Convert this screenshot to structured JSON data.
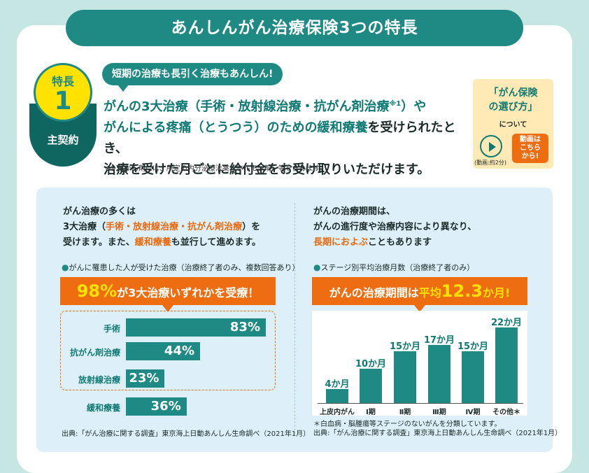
{
  "header": {
    "title": "あんしんがん治療保険3つの特長"
  },
  "feature": {
    "badge_label": "特長",
    "badge_number": "1",
    "badge_sub": "主契約",
    "bubble": "短期の治療も長引く治療もあんしん!",
    "line1_a": "がんの3大治療（手術・放射線治療・抗がん剤治療",
    "line1_sup": "※1",
    "line1_b": "）や",
    "line2_hl1": "がんによる疼痛（とうつう）のための緩和療養",
    "line2_b": "を受けられたとき、",
    "line3": "治療を受けた月ごとに給付金をお受け取りいただけます。",
    "footnote": "※1 抗がん剤には、所定の内分泌療法薬（ホルモン剤）等を含みます。"
  },
  "howto": {
    "title1": "「がん保険",
    "title2": "の選び方」",
    "about": "について",
    "duration": "(動画:約2分)",
    "video_btn1": "動画は",
    "video_btn2": "こちら",
    "video_btn3": "から!"
  },
  "left": {
    "intro1": "がん治療の多くは",
    "intro2a": "3大治療（",
    "intro2b": "手術・放射線治療・抗がん剤治療",
    "intro2c": "）を",
    "intro3a": "受けます。また、",
    "intro3b": "緩和療養",
    "intro3c": "も並行して進めます。",
    "caption": "がんに罹患した人が受けた治療（治療終了者のみ、複数回答あり）",
    "banner_big": "98%",
    "banner_rest": "が3大治療いずれかを受療！",
    "source": "出典:「がん治療に関する調査」東京海上日動あんしん生命調べ（2021年1月）"
  },
  "right": {
    "intro1": "がんの治療期間は、",
    "intro2": "がんの進行度や治療内容により異なり、",
    "intro3a": "長期におよぶ",
    "intro3b": "こともあります",
    "caption": "ステージ別平均治療月数（治療終了者のみ）",
    "banner_a": "がんの治療期間は",
    "banner_b": "平均",
    "banner_big": "12.3",
    "banner_c": "か月!",
    "note": "＊白血病・脳腫瘍等ステージのないがんを分類しています。",
    "source": "出典:「がん治療に関する調査」東京海上日動あんしん生命調べ（2021年1月）"
  },
  "chart_data": [
    {
      "type": "bar",
      "orientation": "horizontal",
      "categories": [
        "手術",
        "抗がん剤治療",
        "放射線治療",
        "緩和療養"
      ],
      "values": [
        83,
        44,
        23,
        36
      ],
      "labels": [
        "83%",
        "44%",
        "23%",
        "36%"
      ],
      "unit": "%",
      "xlim": [
        0,
        100
      ]
    },
    {
      "type": "bar",
      "orientation": "vertical",
      "categories": [
        "上皮内がん",
        "Ⅰ期",
        "Ⅱ期",
        "Ⅲ期",
        "Ⅳ期",
        "その他＊"
      ],
      "values": [
        4,
        10,
        15,
        17,
        15,
        22
      ],
      "labels": [
        "4か月",
        "10か月",
        "15か月",
        "17か月",
        "15か月",
        "22か月"
      ],
      "unit": "か月",
      "ylim": [
        0,
        22
      ]
    }
  ],
  "colors": {
    "teal": "#1f8a84",
    "dark_teal": "#0f6660",
    "orange": "#ef6d11",
    "yellow": "#ffe200",
    "panel": "#ddeff8"
  }
}
